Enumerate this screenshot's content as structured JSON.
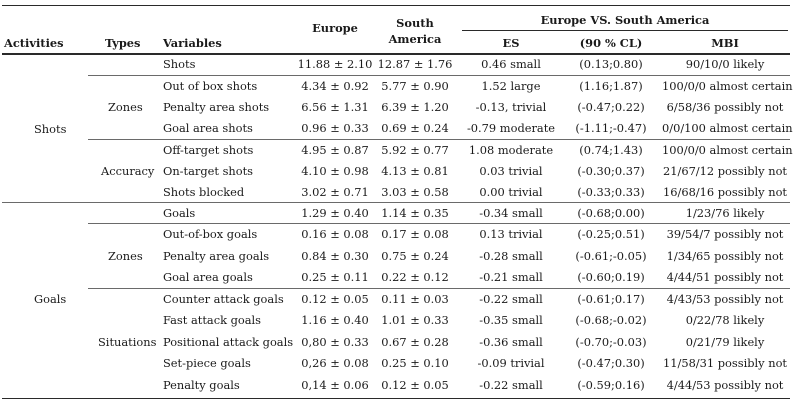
{
  "header": {
    "activities": "Activities",
    "types": "Types",
    "variables": "Variables",
    "europe": "Europe",
    "south_america_1": "South",
    "south_america_2": "America",
    "comparison": "Europe VS. South America",
    "es": "ES",
    "cl": "(90 % CL)",
    "mbi": "MBI"
  },
  "groups": {
    "shots": "Shots",
    "goals": "Goals",
    "zones_shots": "Zones",
    "accuracy": "Accuracy",
    "zones_goals": "Zones",
    "situations": "Situations"
  },
  "rows": [
    {
      "variable": "Shots",
      "europe": "11.88 ± 2.10",
      "sa": "12.87 ± 1.76",
      "es": "0.46 small",
      "cl": "(0.13;0.80)",
      "mbi": "90/10/0 likely"
    },
    {
      "variable": "Out of box shots",
      "europe": "4.34 ± 0.92",
      "sa": "5.77 ± 0.90",
      "es": "1.52 large",
      "cl": "(1.16;1.87)",
      "mbi": "100/0/0 almost certain"
    },
    {
      "variable": "Penalty area shots",
      "europe": "6.56 ± 1.31",
      "sa": "6.39 ± 1.20",
      "es": "-0.13, trivial",
      "cl": "(-0.47;0.22)",
      "mbi": "6/58/36 possibly not"
    },
    {
      "variable": "Goal area shots",
      "europe": "0.96 ± 0.33",
      "sa": "0.69 ± 0.24",
      "es": "-0.79 moderate",
      "cl": "(-1.11;-0.47)",
      "mbi": "0/0/100 almost certain"
    },
    {
      "variable": "Off-target shots",
      "europe": "4.95 ± 0.87",
      "sa": "5.92 ± 0.77",
      "es": "1.08 moderate",
      "cl": "(0.74;1.43)",
      "mbi": "100/0/0 almost certain"
    },
    {
      "variable": "On-target shots",
      "europe": "4.10 ± 0.98",
      "sa": "4.13 ± 0.81",
      "es": "0.03 trivial",
      "cl": "(-0.30;0.37)",
      "mbi": "21/67/12 possibly not"
    },
    {
      "variable": "Shots blocked",
      "europe": "3.02 ± 0.71",
      "sa": "3.03 ± 0.58",
      "es": "0.00 trivial",
      "cl": "(-0.33;0.33)",
      "mbi": "16/68/16 possibly not"
    },
    {
      "variable": "Goals",
      "europe": "1.29 ± 0.40",
      "sa": "1.14 ± 0.35",
      "es": "-0.34 small",
      "cl": "(-0.68;0.00)",
      "mbi": "1/23/76 likely"
    },
    {
      "variable": "Out-of-box goals",
      "europe": "0.16 ± 0.08",
      "sa": "0.17 ± 0.08",
      "es": "0.13 trivial",
      "cl": "(-0.25;0.51)",
      "mbi": "39/54/7 possibly not"
    },
    {
      "variable": "Penalty area goals",
      "europe": "0.84 ± 0.30",
      "sa": "0.75 ± 0.24",
      "es": "-0.28 small",
      "cl": "(-0.61;-0.05)",
      "mbi": "1/34/65 possibly not"
    },
    {
      "variable": "Goal area goals",
      "europe": "0.25 ± 0.11",
      "sa": "0.22 ± 0.12",
      "es": "-0.21 small",
      "cl": "(-0.60;0.19)",
      "mbi": "4/44/51 possibly not"
    },
    {
      "variable": "Counter attack goals",
      "europe": "0.12 ± 0.05",
      "sa": "0.11 ± 0.03",
      "es": "-0.22 small",
      "cl": "(-0.61;0.17)",
      "mbi": "4/43/53 possibly not"
    },
    {
      "variable": "Fast attack goals",
      "europe": "1.16 ± 0.40",
      "sa": "1.01 ± 0.33",
      "es": "-0.35 small",
      "cl": "(-0.68;-0.02)",
      "mbi": "0/22/78 likely"
    },
    {
      "variable": "Positional attack goals",
      "europe": "0,80 ± 0.33",
      "sa": "0.67 ± 0.28",
      "es": "-0.36 small",
      "cl": "(-0.70;-0.03)",
      "mbi": "0/21/79 likely"
    },
    {
      "variable": "Set-piece goals",
      "europe": "0,26 ± 0.08",
      "sa": "0.25 ± 0.10",
      "es": "-0.09 trivial",
      "cl": "(-0.47;0.30)",
      "mbi": "11/58/31 possibly not"
    },
    {
      "variable": "Penalty goals",
      "europe": "0,14 ± 0.06",
      "sa": "0.12 ± 0.05",
      "es": "-0.22 small",
      "cl": "(-0.59;0.16)",
      "mbi": "4/44/53 possibly not"
    }
  ]
}
